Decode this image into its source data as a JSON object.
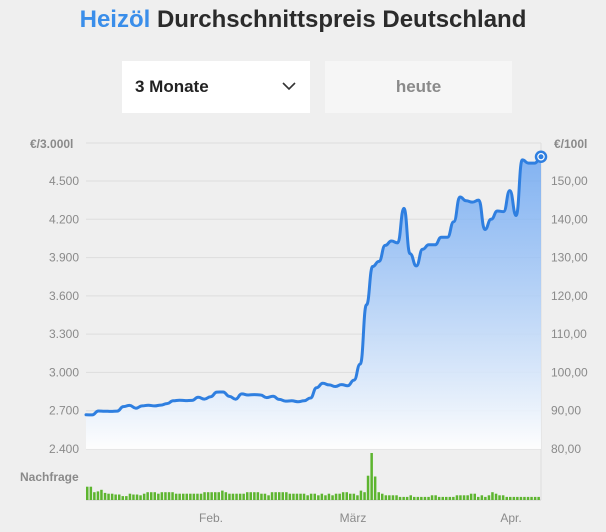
{
  "header": {
    "title_brand": "Heizöl",
    "title_rest": "Durchschnittspreis Deutschland"
  },
  "controls": {
    "period_label": "3 Monate",
    "date_label": "heute"
  },
  "colors": {
    "accent": "#3a8eea",
    "line": "#2f7fe0",
    "demand_bar": "#5db52f"
  },
  "chart_data": {
    "type": "area",
    "left_axis_unit": "€/3.000l",
    "right_axis_unit": "€/100l",
    "left_ticks": [
      "4.500",
      "4.200",
      "3.900",
      "3.600",
      "3.300",
      "3.000",
      "2.700",
      "2.400"
    ],
    "right_ticks": [
      "150,00",
      "140,00",
      "130,00",
      "120,00",
      "110,00",
      "100,00",
      "90,00",
      "80,00"
    ],
    "x_tick_labels": [
      "Feb.",
      "März",
      "Apr."
    ],
    "ylim_left": [
      2400,
      4800
    ],
    "ylim_right": [
      80,
      160
    ],
    "demand_label": "Nachfrage",
    "series": [
      {
        "values": [
          2668,
          2667,
          2698,
          2696,
          2695,
          2697,
          2732,
          2742,
          2720,
          2738,
          2743,
          2738,
          2744,
          2756,
          2778,
          2782,
          2779,
          2781,
          2805,
          2791,
          2810,
          2846,
          2847,
          2812,
          2790,
          2832,
          2823,
          2826,
          2823,
          2803,
          2814,
          2789,
          2775,
          2778,
          2771,
          2778,
          2800,
          2880,
          2915,
          2902,
          2890,
          2905,
          2896,
          2940,
          3065,
          3530,
          3830,
          3870,
          3995,
          4030,
          4015,
          4285,
          3930,
          3835,
          3965,
          4000,
          4000,
          4060,
          4060,
          4180,
          4375,
          4345,
          4335,
          4350,
          4120,
          4200,
          4265,
          4260,
          4425,
          4230,
          4665,
          4640,
          4640,
          4690
        ]
      }
    ],
    "demand": [
      34,
      34,
      20,
      22,
      26,
      18,
      16,
      16,
      14,
      14,
      10,
      10,
      16,
      14,
      14,
      12,
      16,
      20,
      20,
      20,
      16,
      20,
      20,
      20,
      20,
      16,
      16,
      16,
      16,
      16,
      16,
      16,
      16,
      20,
      20,
      20,
      20,
      20,
      24,
      20,
      16,
      16,
      16,
      16,
      16,
      20,
      20,
      20,
      20,
      16,
      16,
      12,
      20,
      20,
      20,
      20,
      20,
      16,
      16,
      16,
      16,
      16,
      12,
      16,
      16,
      12,
      16,
      12,
      16,
      12,
      16,
      16,
      20,
      20,
      16,
      16,
      12,
      24,
      20,
      62,
      120,
      60,
      20,
      16,
      12,
      12,
      12,
      12,
      8,
      8,
      8,
      12,
      8,
      8,
      8,
      8,
      8,
      12,
      12,
      8,
      8,
      8,
      8,
      8,
      12,
      12,
      12,
      12,
      16,
      16,
      8,
      12,
      8,
      12,
      20,
      16,
      12,
      12,
      8,
      8,
      8,
      8,
      8,
      8,
      8,
      8,
      8,
      8
    ]
  }
}
